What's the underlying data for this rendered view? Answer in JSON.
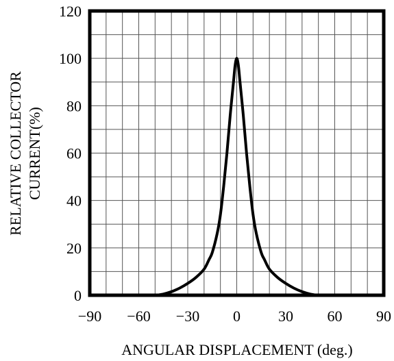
{
  "chart_data": {
    "type": "line",
    "title": "",
    "xlabel": "ANGULAR DISPLACEMENT (deg.)",
    "ylabel_line1": "RELATIVE COLLECTOR",
    "ylabel_line2": "CURRENT(%)",
    "xlim": [
      -90,
      90
    ],
    "ylim": [
      0,
      120
    ],
    "xticks": [
      -90,
      -60,
      -30,
      0,
      30,
      60,
      90
    ],
    "xtick_labels": [
      "−90",
      "−60",
      "−30",
      "0",
      "30",
      "60",
      "90"
    ],
    "yticks": [
      0,
      20,
      40,
      60,
      80,
      100,
      120
    ],
    "ytick_labels": [
      "0",
      "20",
      "40",
      "60",
      "80",
      "100",
      "120"
    ],
    "grid": true,
    "grid_x_step": 10,
    "grid_y_step": 10,
    "series": [
      {
        "color": "#000000",
        "x": [
          -90,
          -60,
          -50,
          -45,
          -40,
          -35,
          -30,
          -25,
          -20,
          -17,
          -15,
          -12,
          -10,
          -8,
          -6,
          -4,
          -2,
          -1,
          0,
          1,
          2,
          4,
          6,
          8,
          10,
          12,
          15,
          17,
          20,
          25,
          30,
          35,
          40,
          45,
          50,
          60,
          90
        ],
        "y": [
          0,
          0,
          0,
          0.5,
          1.5,
          3,
          5,
          7.5,
          11,
          15,
          18,
          26,
          34,
          46,
          60,
          76,
          90,
          97,
          100,
          97,
          90,
          76,
          60,
          46,
          34,
          26,
          18,
          15,
          11,
          7.5,
          5,
          3,
          1.5,
          0.5,
          0,
          0,
          0
        ]
      }
    ]
  }
}
